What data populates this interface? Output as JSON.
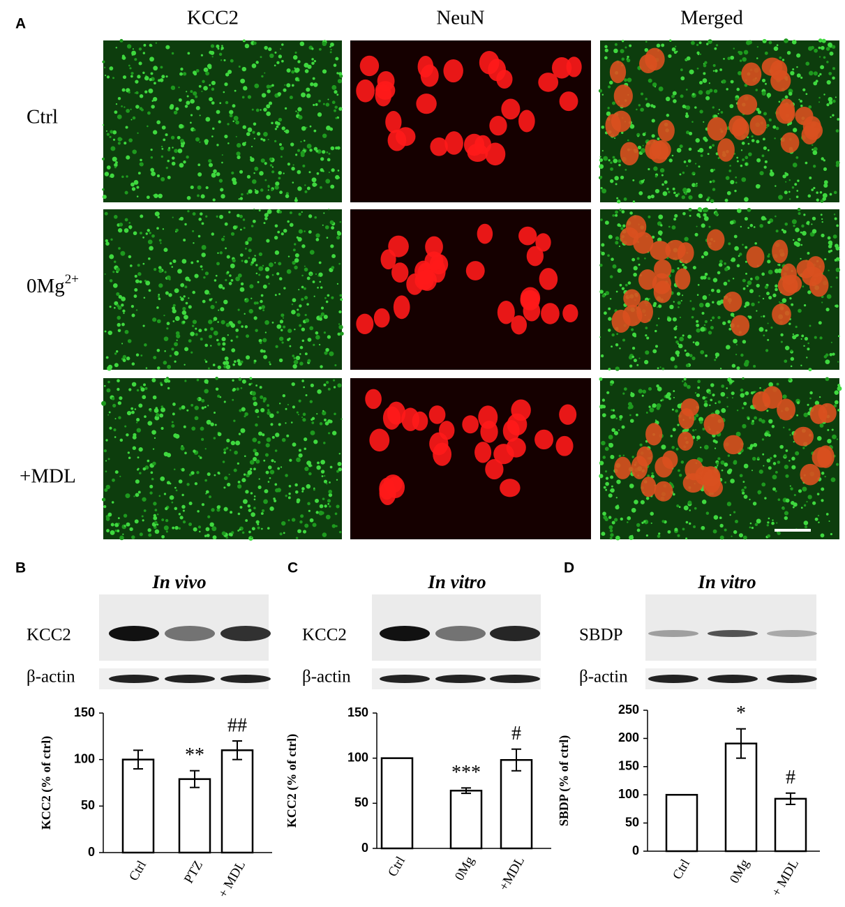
{
  "panel_a": {
    "label": "A",
    "columns": [
      "KCC2",
      "NeuN",
      "Merged"
    ],
    "rows": [
      "Ctrl",
      {
        "text": "0Mg",
        "sup": "2+"
      },
      "+MDL"
    ]
  },
  "blots": [
    {
      "label": "B",
      "title": "In vivo",
      "rows": [
        "KCC2",
        "β-actin"
      ]
    },
    {
      "label": "C",
      "title": "In vitro",
      "rows": [
        "KCC2",
        "β-actin"
      ]
    },
    {
      "label": "D",
      "title": "In vitro",
      "rows": [
        "SBDP",
        "β-actin"
      ]
    }
  ],
  "chart_data": [
    {
      "type": "bar",
      "ylabel": "KCC2 (% of ctrl)",
      "categories": [
        "Ctrl",
        "PTZ",
        "+ MDL"
      ],
      "values": [
        100,
        79,
        110
      ],
      "errors": [
        10,
        9,
        10
      ],
      "annotations": [
        null,
        "**",
        "##"
      ],
      "ylim": [
        0,
        150
      ],
      "yticks": [
        0,
        50,
        100,
        150
      ],
      "color": "#ffffff",
      "edge_color": "#000000"
    },
    {
      "type": "bar",
      "ylabel": "KCC2 (% of ctrl)",
      "categories": [
        "Ctrl",
        "0Mg",
        "+MDL"
      ],
      "values": [
        100,
        64,
        98
      ],
      "errors": [
        0,
        3,
        12
      ],
      "annotations": [
        null,
        "***",
        "#"
      ],
      "ylim": [
        0,
        150
      ],
      "yticks": [
        0,
        50,
        100,
        150
      ],
      "color": "#ffffff",
      "edge_color": "#000000"
    },
    {
      "type": "bar",
      "ylabel": "SBDP (% of ctrl)",
      "categories": [
        "Ctrl",
        "0Mg",
        "+ MDL"
      ],
      "values": [
        100,
        191,
        93
      ],
      "errors": [
        0,
        26,
        10
      ],
      "annotations": [
        null,
        "*",
        "#"
      ],
      "ylim": [
        0,
        250
      ],
      "yticks": [
        0,
        50,
        100,
        150,
        200,
        250
      ],
      "color": "#ffffff",
      "edge_color": "#000000"
    }
  ]
}
